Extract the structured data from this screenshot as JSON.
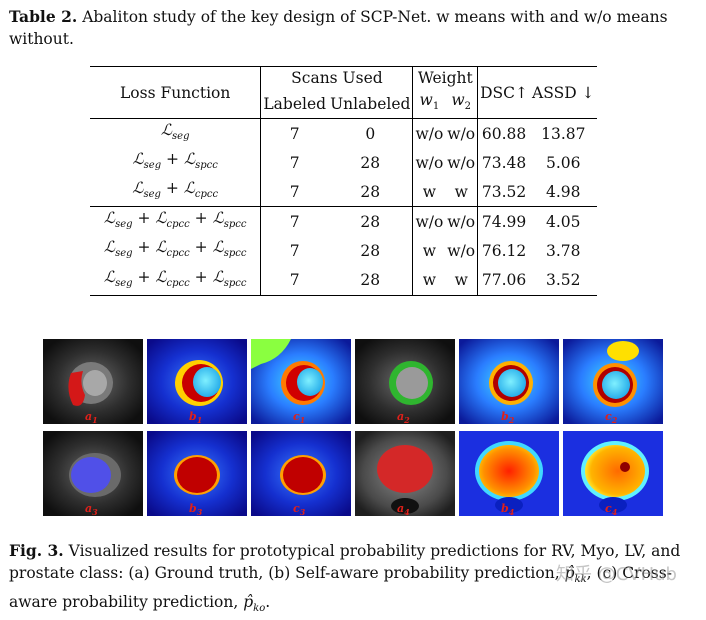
{
  "table_caption": {
    "label": "Table 2.",
    "text": " Abaliton study of the key design of SCP-Net. w means with and w/o means without."
  },
  "table": {
    "header": {
      "loss_function": "Loss Function",
      "scans_used": "Scans Used",
      "labeled": "Labeled",
      "unlabeled": "Unlabeled",
      "weight": "Weight",
      "w1": "w",
      "w1_sub": "1",
      "w2": "w",
      "w2_sub": "2",
      "dsc": "DSC↑",
      "assd": "ASSD ↓"
    },
    "rows": [
      {
        "loss": "ℒ",
        "loss_sub": "seg",
        "loss2": "",
        "loss2_sub": "",
        "loss3": "",
        "loss3_sub": "",
        "labeled": "7",
        "unlabeled": "0",
        "w1": "w/o",
        "w2": "w/o",
        "dsc": "60.88",
        "assd": "13.87"
      },
      {
        "loss": "ℒ",
        "loss_sub": "seg",
        "loss2": " + ℒ",
        "loss2_sub": "spcc",
        "loss3": "",
        "loss3_sub": "",
        "labeled": "7",
        "unlabeled": "28",
        "w1": "w/o",
        "w2": "w/o",
        "dsc": "73.48",
        "assd": "5.06"
      },
      {
        "loss": "ℒ",
        "loss_sub": "seg",
        "loss2": " + ℒ",
        "loss2_sub": "cpcc",
        "loss3": "",
        "loss3_sub": "",
        "labeled": "7",
        "unlabeled": "28",
        "w1": "w",
        "w2": "w",
        "dsc": "73.52",
        "assd": "4.98"
      },
      {
        "loss": "ℒ",
        "loss_sub": "seg",
        "loss2": " + ℒ",
        "loss2_sub": "cpcc",
        "loss3": " + ℒ",
        "loss3_sub": "spcc",
        "labeled": "7",
        "unlabeled": "28",
        "w1": "w/o",
        "w2": "w/o",
        "dsc": "74.99",
        "assd": "4.05"
      },
      {
        "loss": "ℒ",
        "loss_sub": "seg",
        "loss2": " + ℒ",
        "loss2_sub": "cpcc",
        "loss3": " + ℒ",
        "loss3_sub": "spcc",
        "labeled": "7",
        "unlabeled": "28",
        "w1": "w",
        "w2": "w/o",
        "dsc": "76.12",
        "assd": "3.78"
      },
      {
        "loss": "ℒ",
        "loss_sub": "seg",
        "loss2": " + ℒ",
        "loss2_sub": "cpcc",
        "loss3": " + ℒ",
        "loss3_sub": "spcc",
        "labeled": "7",
        "unlabeled": "28",
        "w1": "w",
        "w2": "w",
        "dsc": "77.06",
        "assd": "3.52"
      }
    ]
  },
  "figure": {
    "panels_row1": [
      {
        "label": "a",
        "label_sub": "1"
      },
      {
        "label": "b",
        "label_sub": "1"
      },
      {
        "label": "c",
        "label_sub": "1"
      },
      {
        "label": "a",
        "label_sub": "2"
      },
      {
        "label": "b",
        "label_sub": "2"
      },
      {
        "label": "c",
        "label_sub": "2"
      }
    ],
    "panels_row2": [
      {
        "label": "a",
        "label_sub": "3"
      },
      {
        "label": "b",
        "label_sub": "3"
      },
      {
        "label": "c",
        "label_sub": "3"
      },
      {
        "label": "a",
        "label_sub": "4"
      },
      {
        "label": "b",
        "label_sub": "4"
      },
      {
        "label": "c",
        "label_sub": "4"
      }
    ]
  },
  "fig_caption": {
    "label": "Fig. 3.",
    "text1": " Visualized results for prototypical probability predictions for RV, Myo, LV, and prostate class: (a) Ground truth, (b) Self-aware probability prediction, ",
    "phat_kk": "p̂",
    "phat_kk_sub": "kk",
    "text2": ", (c) Cross-aware probability prediction, ",
    "phat_ko": "p̂",
    "phat_ko_sub": "ko",
    "text3": "."
  },
  "watermark": "知乎 @CVHub"
}
